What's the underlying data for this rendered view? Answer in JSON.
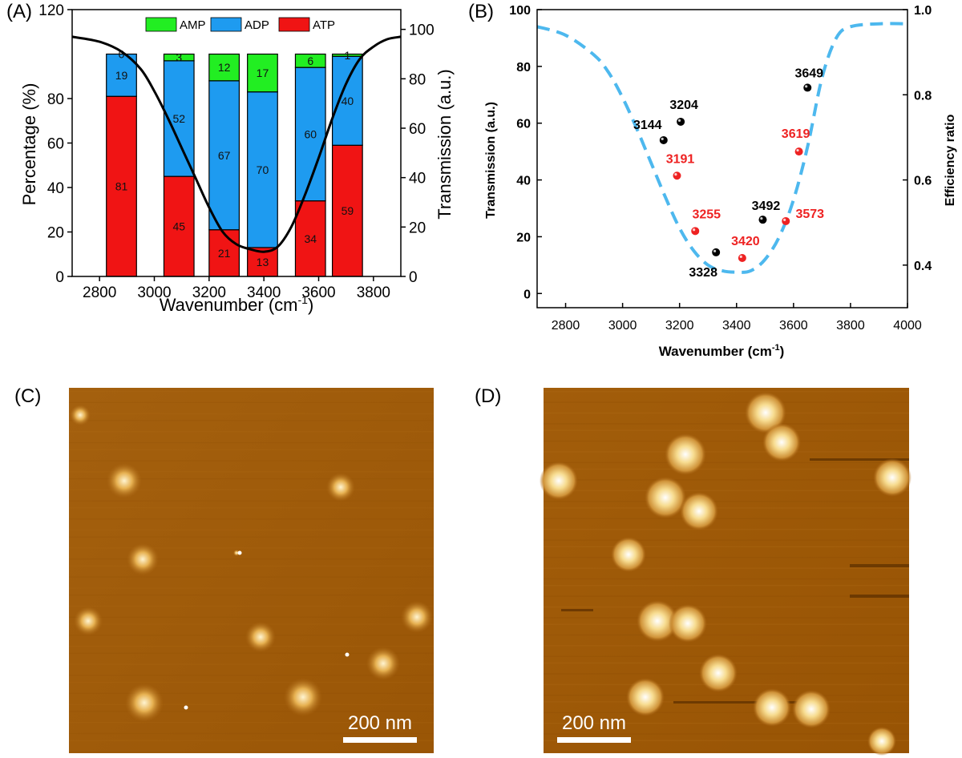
{
  "panel_labels": {
    "a": "(A)",
    "b": "(B)",
    "c": "(C)",
    "d": "(D)"
  },
  "colors": {
    "amp": "#22ee22",
    "adp": "#1e9bf0",
    "atp": "#f01414",
    "black": "#000000",
    "red_points": "#ee2222",
    "dash": "#4db8ee",
    "afm_bg": "#a05c08"
  },
  "chart_data": [
    {
      "panel": "A",
      "type": "bar",
      "stacked": true,
      "xlabel_main": "Wavenumber (cm",
      "xlabel_sup": "-1",
      "xlabel_end": ")",
      "ylabel": "Percentage (%)",
      "ylabel_right": "Transmission (a.u.)",
      "xlim": [
        2700,
        3900
      ],
      "ylim": [
        0,
        120
      ],
      "ylim_right": [
        0,
        108
      ],
      "x_ticks": [
        2800,
        3000,
        3200,
        3400,
        3600,
        3800
      ],
      "y_ticks": [
        0,
        20,
        40,
        60,
        80,
        120
      ],
      "y_ticks_right": [
        0,
        20,
        40,
        60,
        80,
        100
      ],
      "legend": [
        "AMP",
        "ADP",
        "ATP"
      ],
      "legend_position": "top",
      "bar_width": 110,
      "bars": [
        {
          "x": 2880,
          "ATP": 81,
          "ADP": 19,
          "AMP": 0
        },
        {
          "x": 3090,
          "ATP": 45,
          "ADP": 52,
          "AMP": 3
        },
        {
          "x": 3255,
          "ATP": 21,
          "ADP": 67,
          "AMP": 12
        },
        {
          "x": 3395,
          "ATP": 13,
          "ADP": 70,
          "AMP": 17
        },
        {
          "x": 3570,
          "ATP": 34,
          "ADP": 60,
          "AMP": 6
        },
        {
          "x": 3705,
          "ATP": 59,
          "ADP": 40,
          "AMP": 1
        }
      ],
      "transmission_curve": {
        "x": [
          2700,
          2800,
          2880,
          2950,
          3000,
          3050,
          3100,
          3150,
          3200,
          3250,
          3300,
          3350,
          3400,
          3450,
          3500,
          3550,
          3600,
          3650,
          3700,
          3750,
          3800,
          3850,
          3900
        ],
        "y": [
          97,
          95,
          91,
          84,
          75,
          64,
          52,
          40,
          28,
          18,
          13,
          11,
          10,
          12,
          20,
          33,
          48,
          64,
          78,
          88,
          93,
          96,
          97
        ]
      }
    },
    {
      "panel": "B",
      "type": "scatter",
      "xlabel_main": "Wavenumber (cm",
      "xlabel_sup": "-1",
      "xlabel_end": ")",
      "ylabel": "Transmission (a.u.)",
      "ylabel_right": "Efficiency ratio",
      "xlim": [
        2700,
        4000
      ],
      "ylim": [
        -5,
        100
      ],
      "ylim_right": [
        0.3,
        1.0
      ],
      "x_ticks": [
        2800,
        3000,
        3200,
        3400,
        3600,
        3800,
        4000
      ],
      "y_ticks": [
        0,
        20,
        40,
        60,
        80,
        100
      ],
      "y_ticks_right": [
        0.4,
        0.6,
        0.8,
        1.0
      ],
      "series": [
        {
          "name": "",
          "axis": "left",
          "color": "black",
          "x": [
            3144,
            3204,
            3328,
            3492,
            3649
          ],
          "y": [
            54,
            60.5,
            14.5,
            26,
            72.5
          ],
          "labels": [
            "3144",
            "3204",
            "3328",
            "3492",
            "3649"
          ]
        },
        {
          "name": "",
          "axis": "left",
          "color": "red",
          "x": [
            3191,
            3255,
            3420,
            3573,
            3619
          ],
          "y": [
            41.5,
            22,
            12.5,
            25.5,
            50
          ],
          "labels": [
            "3191",
            "3255",
            "3420",
            "3573",
            "3619"
          ]
        }
      ],
      "dashed_curve": {
        "x": [
          2700,
          2800,
          2900,
          2950,
          3000,
          3050,
          3100,
          3150,
          3200,
          3250,
          3300,
          3350,
          3400,
          3450,
          3500,
          3550,
          3600,
          3650,
          3700,
          3750,
          3800,
          3900,
          4000
        ],
        "y": [
          94,
          91,
          84,
          78,
          69,
          58,
          46,
          34,
          23,
          15,
          10,
          8,
          7.5,
          8,
          12,
          20,
          33,
          52,
          76,
          90,
          94,
          95,
          95
        ]
      }
    }
  ],
  "afm_images": [
    {
      "panel": "C",
      "scale_bar": "200 nm"
    },
    {
      "panel": "D",
      "scale_bar": "200 nm"
    }
  ]
}
